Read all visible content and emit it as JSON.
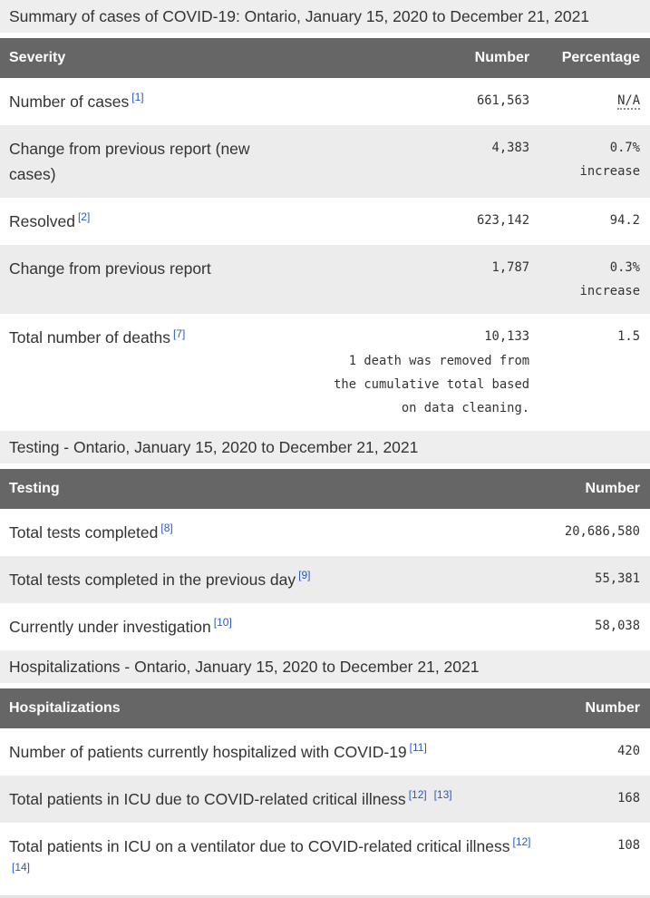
{
  "colors": {
    "header_bg": "#666666",
    "header_text": "#ffffff",
    "caption_bg": "#eeeeee",
    "zebra_row_bg": "#ececec",
    "link_blue": "#2659c6",
    "body_text": "#333333"
  },
  "tables": [
    {
      "caption": "Summary of cases of COVID-19: Ontario, January 15, 2020 to December 21, 2021",
      "layout": "three-col",
      "columns": [
        "Severity",
        "Number",
        "Percentage"
      ],
      "rows": [
        {
          "label": "Number of cases",
          "refs": [
            "[1]"
          ],
          "number": "661,563",
          "percentage": "N/A",
          "percentage_dotted": true
        },
        {
          "label": "Change from previous report (new cases)",
          "refs": [],
          "number": "4,383",
          "percentage": "0.7% increase"
        },
        {
          "label": "Resolved",
          "refs": [
            "[2]"
          ],
          "number": "623,142",
          "percentage": "94.2"
        },
        {
          "label": "Change from previous report",
          "refs": [],
          "number": "1,787",
          "percentage": "0.3% increase"
        },
        {
          "label": "Total number of deaths",
          "refs": [
            "[7]"
          ],
          "number": "10,133",
          "number_note_lines": [
            "1 death was removed from",
            "the cumulative total based",
            "on data cleaning."
          ],
          "percentage": "1.5"
        }
      ]
    },
    {
      "caption": "Testing - Ontario, January 15, 2020 to December 21, 2021",
      "layout": "two-col",
      "columns": [
        "Testing",
        "Number"
      ],
      "rows": [
        {
          "label": "Total tests completed",
          "refs": [
            "[8]"
          ],
          "number": "20,686,580"
        },
        {
          "label": "Total tests completed in the previous day",
          "refs": [
            "[9]"
          ],
          "number": "55,381"
        },
        {
          "label": "Currently under investigation",
          "refs": [
            "[10]"
          ],
          "number": "58,038"
        }
      ]
    },
    {
      "caption": "Hospitalizations - Ontario, January 15, 2020 to December 21, 2021",
      "layout": "two-col",
      "columns": [
        "Hospitalizations",
        "Number"
      ],
      "rows": [
        {
          "label": "Number of patients currently hospitalized with COVID-19",
          "refs": [
            "[11]"
          ],
          "number": "420"
        },
        {
          "label": "Total patients in ICU due to COVID-related critical illness",
          "refs": [
            "[12]",
            "[13]"
          ],
          "number": "168"
        },
        {
          "label": "Total patients in ICU on a ventilator due to COVID-related critical illness",
          "refs": [
            "[12]",
            "[14]"
          ],
          "number": "108"
        }
      ]
    }
  ]
}
